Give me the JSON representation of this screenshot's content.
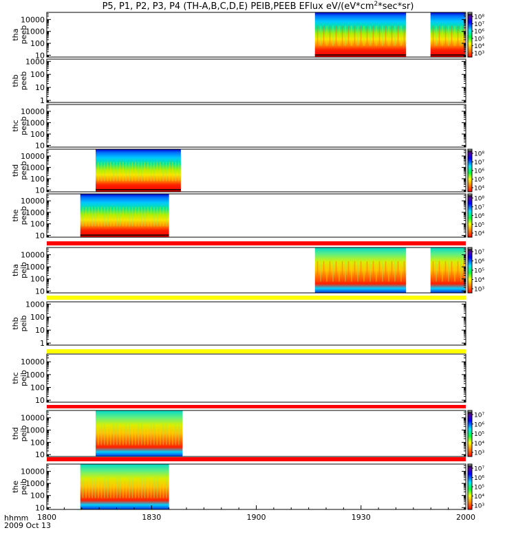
{
  "title": {
    "prefix": "P5, P1, P2, P3, P4 (TH-A,B,C,D,E) PEIB,PEEB EFlux eV/(eV*cm",
    "sup": "2",
    "suffix": "*sec*sr)"
  },
  "time_axis": {
    "label_line1": "hhmm",
    "label_line2": "2009 Oct 13",
    "ticks": [
      "1800",
      "1830",
      "1900",
      "1930",
      "2000"
    ],
    "range_minutes": [
      0,
      120
    ]
  },
  "chart_data": [
    {
      "type": "heatmap",
      "ylabel": [
        "tha",
        "peeb"
      ],
      "ylog": true,
      "ylim": [
        7,
        40000
      ],
      "yticks": [
        "10",
        "100",
        "1000",
        "10000"
      ],
      "intervals": [
        [
          76.8,
          102.9
        ],
        [
          109.9,
          119.8
        ]
      ],
      "species": "electron",
      "colorbar": {
        "labels": [
          "10³",
          "10⁴",
          "10⁵",
          "10⁶",
          "10⁷",
          "10⁸"
        ]
      }
    },
    {
      "type": "heatmap",
      "ylabel": [
        "thb",
        "peeb"
      ],
      "ylog": true,
      "ylim": [
        0.7,
        1500
      ],
      "yticks": [
        "1",
        "10",
        "100",
        "1000"
      ],
      "intervals": []
    },
    {
      "type": "heatmap",
      "ylabel": [
        "thc",
        "peeb"
      ],
      "ylog": true,
      "ylim": [
        7,
        40000
      ],
      "yticks": [
        "10",
        "100",
        "1000",
        "10000"
      ],
      "intervals": []
    },
    {
      "type": "heatmap",
      "ylabel": [
        "thd",
        "peeb"
      ],
      "ylog": true,
      "ylim": [
        7,
        40000
      ],
      "yticks": [
        "10",
        "100",
        "1000",
        "10000"
      ],
      "intervals": [
        [
          14.0,
          38.4
        ]
      ],
      "species": "electron",
      "colorbar": {
        "labels": [
          "10⁴",
          "10⁵",
          "10⁶",
          "10⁷",
          "10⁸"
        ]
      }
    },
    {
      "type": "heatmap",
      "ylabel": [
        "the",
        "peeb"
      ],
      "ylog": true,
      "ylim": [
        7,
        40000
      ],
      "yticks": [
        "10",
        "100",
        "1000",
        "10000"
      ],
      "intervals": [
        [
          9.6,
          35.0
        ]
      ],
      "species": "electron",
      "colorbar": {
        "labels": [
          "10⁴",
          "10⁵",
          "10⁶",
          "10⁷",
          "10⁸"
        ]
      }
    },
    {
      "type": "heatmap",
      "ylabel": [
        "tha",
        "peib"
      ],
      "ylog": true,
      "ylim": [
        7,
        40000
      ],
      "yticks": [
        "10",
        "100",
        "1000",
        "10000"
      ],
      "intervals": [
        [
          76.8,
          102.9
        ],
        [
          109.9,
          119.8
        ]
      ],
      "species": "ion",
      "colorbar": {
        "labels": [
          "10³",
          "10⁴",
          "10⁵",
          "10⁶",
          "10⁷"
        ]
      }
    },
    {
      "type": "heatmap",
      "ylabel": [
        "thb",
        "peib"
      ],
      "ylog": true,
      "ylim": [
        0.7,
        1500
      ],
      "yticks": [
        "1",
        "10",
        "100",
        "1000"
      ],
      "intervals": []
    },
    {
      "type": "heatmap",
      "ylabel": [
        "thc",
        "peib"
      ],
      "ylog": true,
      "ylim": [
        7,
        40000
      ],
      "yticks": [
        "10",
        "100",
        "1000",
        "10000"
      ],
      "intervals": []
    },
    {
      "type": "heatmap",
      "ylabel": [
        "thd",
        "peib"
      ],
      "ylog": true,
      "ylim": [
        7,
        40000
      ],
      "yticks": [
        "10",
        "100",
        "1000",
        "10000"
      ],
      "intervals": [
        [
          14.0,
          38.9
        ]
      ],
      "species": "ion",
      "colorbar": {
        "labels": [
          "10³",
          "10⁴",
          "10⁵",
          "10⁶",
          "10⁷"
        ]
      }
    },
    {
      "type": "heatmap",
      "ylabel": [
        "the",
        "peib"
      ],
      "ylog": true,
      "ylim": [
        7,
        40000
      ],
      "yticks": [
        "10",
        "100",
        "1000",
        "10000"
      ],
      "intervals": [
        [
          9.6,
          35.0
        ]
      ],
      "species": "ion",
      "colorbar": {
        "labels": [
          "10³",
          "10⁴",
          "10⁵",
          "10⁶",
          "10⁷"
        ]
      }
    }
  ],
  "flag_bars": [
    {
      "color": "#ff0000"
    },
    {
      "color": "#ffff00"
    },
    {
      "color": "#ffff00"
    },
    {
      "color": "#ff0000"
    },
    {
      "color": "#ff0000"
    }
  ]
}
